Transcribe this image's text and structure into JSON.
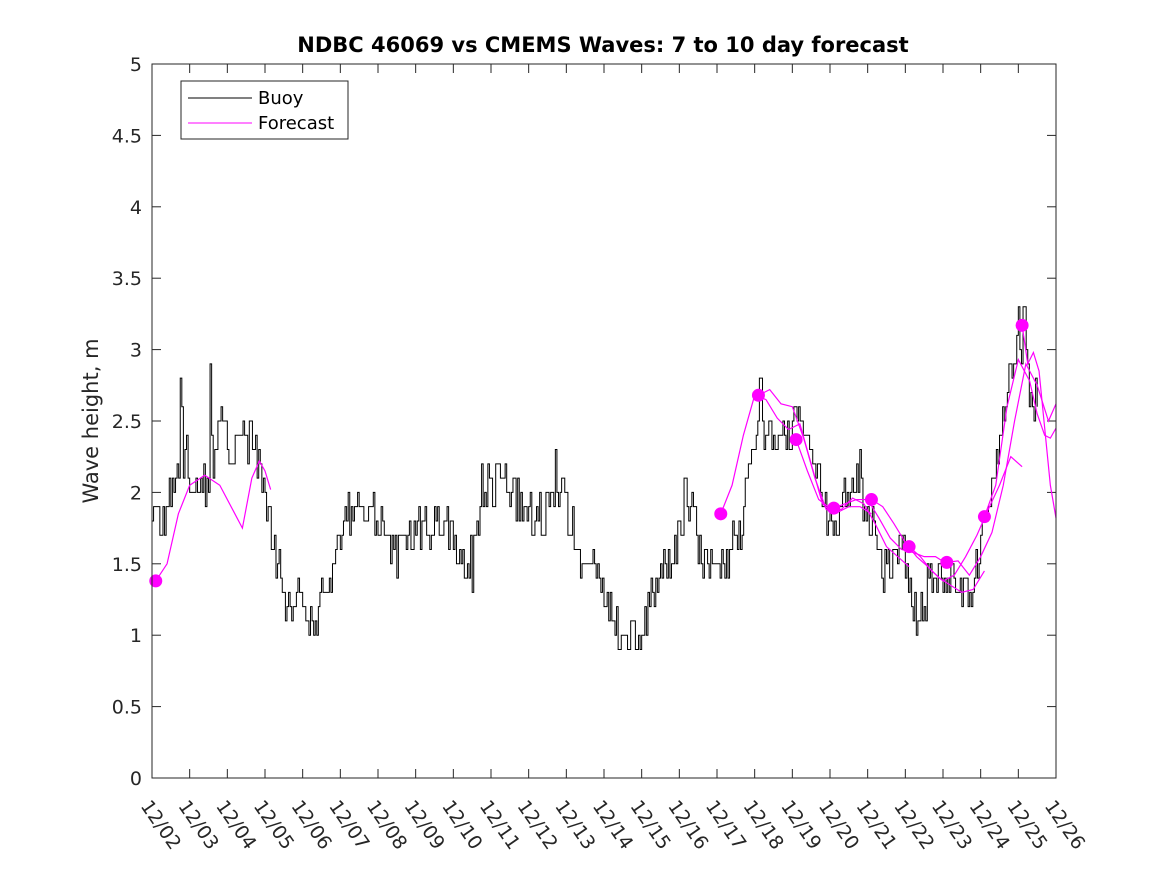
{
  "chart_data": {
    "type": "line",
    "title": "NDBC 46069 vs CMEMS Waves: 7 to 10 day forecast",
    "xlabel": "",
    "ylabel": "Wave height, m",
    "xlim": [
      0,
      24
    ],
    "ylim": [
      0,
      5
    ],
    "x_tick_labels": [
      "12/02",
      "12/03",
      "12/04",
      "12/05",
      "12/06",
      "12/07",
      "12/08",
      "12/09",
      "12/10",
      "12/11",
      "12/12",
      "12/13",
      "12/14",
      "12/15",
      "12/16",
      "12/17",
      "12/18",
      "12/19",
      "12/20",
      "12/21",
      "12/22",
      "12/23",
      "12/24",
      "12/25",
      "12/26"
    ],
    "y_tick_labels": [
      "0",
      "0.5",
      "1",
      "1.5",
      "2",
      "2.5",
      "3",
      "3.5",
      "4",
      "4.5",
      "5"
    ],
    "y_ticks": [
      0,
      0.5,
      1,
      1.5,
      2,
      2.5,
      3,
      3.5,
      4,
      4.5,
      5
    ],
    "legend": {
      "location": "top-left",
      "entries": [
        "Buoy",
        "Forecast"
      ]
    },
    "colors": {
      "buoy": "#000000",
      "forecast": "#ff00ff",
      "axes": "#262626"
    },
    "buoy_anchors": [
      [
        0.0,
        1.9
      ],
      [
        0.3,
        1.75
      ],
      [
        0.6,
        2.1
      ],
      [
        0.9,
        2.25
      ],
      [
        1.2,
        2.0
      ],
      [
        1.5,
        2.1
      ],
      [
        1.8,
        2.5
      ],
      [
        2.1,
        2.25
      ],
      [
        2.4,
        2.35
      ],
      [
        2.7,
        2.3
      ],
      [
        2.9,
        2.1
      ],
      [
        3.1,
        1.85
      ],
      [
        3.3,
        1.55
      ],
      [
        3.5,
        1.25
      ],
      [
        3.7,
        1.25
      ],
      [
        3.9,
        1.45
      ],
      [
        4.1,
        1.25
      ],
      [
        4.3,
        1.12
      ],
      [
        4.5,
        1.22
      ],
      [
        4.7,
        1.35
      ],
      [
        4.9,
        1.6
      ],
      [
        5.1,
        1.8
      ],
      [
        5.3,
        1.88
      ],
      [
        5.6,
        1.85
      ],
      [
        5.9,
        1.8
      ],
      [
        6.2,
        1.7
      ],
      [
        6.5,
        1.6
      ],
      [
        6.8,
        1.72
      ],
      [
        7.1,
        1.78
      ],
      [
        7.4,
        1.75
      ],
      [
        7.7,
        1.82
      ],
      [
        8.0,
        1.72
      ],
      [
        8.2,
        1.55
      ],
      [
        8.4,
        1.5
      ],
      [
        8.6,
        1.8
      ],
      [
        8.8,
        2.05
      ],
      [
        9.1,
        2.0
      ],
      [
        9.4,
        2.1
      ],
      [
        9.7,
        1.95
      ],
      [
        10.0,
        1.85
      ],
      [
        10.3,
        1.9
      ],
      [
        10.6,
        1.85
      ],
      [
        10.9,
        2.1
      ],
      [
        11.1,
        1.8
      ],
      [
        11.3,
        1.6
      ],
      [
        11.5,
        1.5
      ],
      [
        11.7,
        1.48
      ],
      [
        11.9,
        1.35
      ],
      [
        12.1,
        1.2
      ],
      [
        12.3,
        1.05
      ],
      [
        12.5,
        1.0
      ],
      [
        12.7,
        1.05
      ],
      [
        12.9,
        0.98
      ],
      [
        13.1,
        1.1
      ],
      [
        13.3,
        1.28
      ],
      [
        13.5,
        1.42
      ],
      [
        13.7,
        1.52
      ],
      [
        13.9,
        1.62
      ],
      [
        14.1,
        1.72
      ],
      [
        14.3,
        1.85
      ],
      [
        14.5,
        1.65
      ],
      [
        14.7,
        1.55
      ],
      [
        14.9,
        1.45
      ],
      [
        15.1,
        1.5
      ],
      [
        15.3,
        1.55
      ],
      [
        15.5,
        1.65
      ],
      [
        15.7,
        1.85
      ],
      [
        15.9,
        2.2
      ],
      [
        16.1,
        2.55
      ],
      [
        16.3,
        2.4
      ],
      [
        16.5,
        2.45
      ],
      [
        16.7,
        2.3
      ],
      [
        16.9,
        2.4
      ],
      [
        17.1,
        2.48
      ],
      [
        17.3,
        2.45
      ],
      [
        17.5,
        2.3
      ],
      [
        17.7,
        2.1
      ],
      [
        17.9,
        1.85
      ],
      [
        18.1,
        1.8
      ],
      [
        18.3,
        1.9
      ],
      [
        18.5,
        2.0
      ],
      [
        18.7,
        2.1
      ],
      [
        18.9,
        1.95
      ],
      [
        19.1,
        1.85
      ],
      [
        19.3,
        1.55
      ],
      [
        19.5,
        1.45
      ],
      [
        19.7,
        1.5
      ],
      [
        19.9,
        1.6
      ],
      [
        20.1,
        1.3
      ],
      [
        20.3,
        1.15
      ],
      [
        20.5,
        1.25
      ],
      [
        20.7,
        1.38
      ],
      [
        20.9,
        1.45
      ],
      [
        21.1,
        1.38
      ],
      [
        21.3,
        1.42
      ],
      [
        21.5,
        1.3
      ],
      [
        21.7,
        1.28
      ],
      [
        21.9,
        1.5
      ],
      [
        22.1,
        1.72
      ],
      [
        22.3,
        2.05
      ],
      [
        22.5,
        2.4
      ],
      [
        22.7,
        2.75
      ],
      [
        22.9,
        2.95
      ],
      [
        23.1,
        3.1
      ],
      [
        23.25,
        2.85
      ],
      [
        23.4,
        2.55
      ],
      [
        23.5,
        2.65
      ]
    ],
    "buoy_peaks": [
      [
        0.75,
        2.8
      ],
      [
        1.55,
        2.9
      ],
      [
        0.8,
        2.55
      ],
      [
        1.95,
        2.5
      ],
      [
        2.6,
        2.5
      ],
      [
        8.5,
        1.3
      ],
      [
        4.1,
        1.1
      ],
      [
        8.75,
        2.2
      ],
      [
        9.15,
        2.2
      ],
      [
        10.7,
        2.3
      ],
      [
        12.4,
        0.9
      ],
      [
        12.85,
        0.9
      ],
      [
        14.15,
        2.1
      ],
      [
        16.15,
        2.8
      ],
      [
        17.05,
        2.6
      ],
      [
        18.8,
        2.3
      ],
      [
        20.35,
        1.1
      ],
      [
        23.0,
        3.3
      ],
      [
        23.15,
        3.3
      ]
    ],
    "forecast_series": [
      {
        "name": "forecast-1",
        "values": [
          [
            0.1,
            1.38
          ],
          [
            0.4,
            1.5
          ],
          [
            0.7,
            1.85
          ],
          [
            1.0,
            2.05
          ],
          [
            1.4,
            2.12
          ],
          [
            1.8,
            2.05
          ],
          [
            2.2,
            1.85
          ],
          [
            2.4,
            1.75
          ],
          [
            2.65,
            2.1
          ],
          [
            2.85,
            2.22
          ],
          [
            3.0,
            2.15
          ],
          [
            3.15,
            2.02
          ]
        ]
      },
      {
        "name": "forecast-2",
        "values": [
          [
            15.1,
            1.85
          ],
          [
            15.4,
            2.05
          ],
          [
            15.7,
            2.4
          ],
          [
            16.0,
            2.68
          ],
          [
            16.3,
            2.65
          ],
          [
            16.6,
            2.52
          ],
          [
            16.9,
            2.44
          ],
          [
            17.2,
            2.48
          ],
          [
            17.5,
            2.2
          ],
          [
            17.8,
            1.92
          ],
          [
            18.1,
            1.85
          ]
        ]
      },
      {
        "name": "forecast-3",
        "values": [
          [
            16.1,
            2.68
          ],
          [
            16.4,
            2.72
          ],
          [
            16.7,
            2.62
          ],
          [
            17.0,
            2.6
          ],
          [
            17.3,
            2.38
          ],
          [
            17.6,
            2.1
          ],
          [
            17.9,
            1.88
          ],
          [
            18.2,
            1.86
          ],
          [
            18.5,
            1.9
          ],
          [
            18.8,
            1.9
          ],
          [
            19.1,
            1.85
          ]
        ]
      },
      {
        "name": "forecast-4",
        "values": [
          [
            17.1,
            2.37
          ],
          [
            17.4,
            2.15
          ],
          [
            17.7,
            1.95
          ],
          [
            18.0,
            1.89
          ],
          [
            18.3,
            1.88
          ],
          [
            18.6,
            1.96
          ],
          [
            18.9,
            1.92
          ],
          [
            19.2,
            1.78
          ],
          [
            19.5,
            1.62
          ],
          [
            19.8,
            1.55
          ],
          [
            20.1,
            1.48
          ]
        ]
      },
      {
        "name": "forecast-5",
        "values": [
          [
            18.1,
            1.89
          ],
          [
            18.4,
            1.92
          ],
          [
            18.7,
            1.95
          ],
          [
            19.0,
            1.95
          ],
          [
            19.3,
            1.82
          ],
          [
            19.6,
            1.68
          ],
          [
            19.9,
            1.6
          ],
          [
            20.2,
            1.58
          ],
          [
            20.5,
            1.55
          ],
          [
            20.8,
            1.55
          ],
          [
            21.1,
            1.5
          ]
        ]
      },
      {
        "name": "forecast-6",
        "values": [
          [
            19.1,
            1.95
          ],
          [
            19.4,
            1.9
          ],
          [
            19.7,
            1.78
          ],
          [
            20.0,
            1.65
          ],
          [
            20.3,
            1.55
          ],
          [
            20.6,
            1.48
          ],
          [
            20.9,
            1.4
          ],
          [
            21.2,
            1.35
          ],
          [
            21.5,
            1.3
          ],
          [
            21.8,
            1.32
          ],
          [
            22.1,
            1.45
          ]
        ]
      },
      {
        "name": "forecast-7",
        "values": [
          [
            20.1,
            1.62
          ],
          [
            20.4,
            1.55
          ],
          [
            20.7,
            1.45
          ],
          [
            21.0,
            1.38
          ],
          [
            21.3,
            1.42
          ],
          [
            21.6,
            1.55
          ],
          [
            21.9,
            1.7
          ],
          [
            22.2,
            1.88
          ],
          [
            22.5,
            2.05
          ],
          [
            22.8,
            2.25
          ],
          [
            23.1,
            2.18
          ]
        ]
      },
      {
        "name": "forecast-8",
        "values": [
          [
            21.1,
            1.51
          ],
          [
            21.4,
            1.52
          ],
          [
            21.7,
            1.42
          ],
          [
            22.0,
            1.55
          ],
          [
            22.3,
            1.72
          ],
          [
            22.6,
            2.05
          ],
          [
            22.9,
            2.5
          ],
          [
            23.2,
            2.9
          ],
          [
            23.5,
            2.75
          ],
          [
            23.8,
            2.5
          ],
          [
            24.0,
            2.62
          ]
        ]
      },
      {
        "name": "forecast-9",
        "values": [
          [
            22.1,
            1.83
          ],
          [
            22.4,
            2.05
          ],
          [
            22.7,
            2.6
          ],
          [
            23.0,
            2.93
          ],
          [
            23.3,
            2.78
          ],
          [
            23.5,
            2.55
          ],
          [
            23.7,
            2.4
          ],
          [
            23.85,
            2.38
          ],
          [
            24.0,
            2.45
          ]
        ]
      },
      {
        "name": "forecast-10",
        "values": [
          [
            23.1,
            3.17
          ],
          [
            23.25,
            2.9
          ],
          [
            23.4,
            2.98
          ],
          [
            23.55,
            2.85
          ],
          [
            23.7,
            2.45
          ],
          [
            23.85,
            2.05
          ],
          [
            24.0,
            1.82
          ]
        ]
      }
    ],
    "forecast_markers": [
      [
        0.1,
        1.38
      ],
      [
        15.1,
        1.85
      ],
      [
        16.1,
        2.68
      ],
      [
        17.1,
        2.37
      ],
      [
        18.1,
        1.89
      ],
      [
        19.1,
        1.95
      ],
      [
        20.1,
        1.62
      ],
      [
        21.1,
        1.51
      ],
      [
        22.1,
        1.83
      ],
      [
        23.1,
        3.17
      ]
    ]
  }
}
